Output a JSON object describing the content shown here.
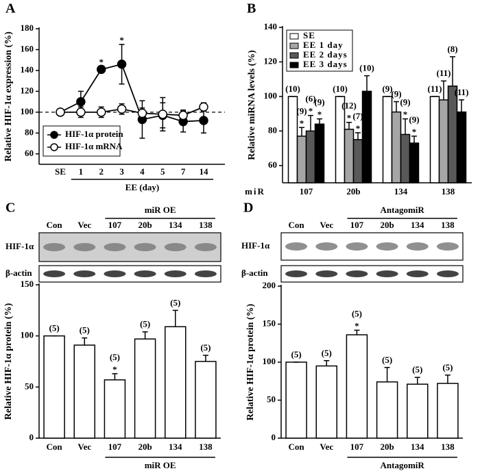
{
  "chart_data": [
    {
      "type": "line",
      "panel": "A",
      "ylabel": "Relative HIF-1α expression (%)",
      "categories": [
        "SE",
        "1",
        "2",
        "3",
        "4",
        "5",
        "7",
        "14"
      ],
      "series": [
        {
          "name": "HIF-1α protein",
          "color": "#000000",
          "values": [
            100,
            110,
            141,
            146,
            93,
            97,
            91,
            92
          ],
          "errors": [
            0,
            10,
            3,
            19,
            18,
            12,
            10,
            12
          ]
        },
        {
          "name": "HIF-1α mRNA",
          "color": "#ffffff",
          "values": [
            100,
            100,
            100,
            103,
            99,
            98,
            97,
            105
          ],
          "errors": [
            0,
            5,
            5,
            5,
            5,
            16,
            5,
            4
          ]
        }
      ],
      "annotations": [
        {
          "text": "*",
          "category": "2",
          "series": 0
        },
        {
          "text": "*",
          "category": "3",
          "series": 0
        }
      ],
      "reference_line": 100,
      "group": {
        "label": "EE (day)",
        "from": "1",
        "to": "14"
      },
      "ylim": [
        50,
        180
      ],
      "yticks": [
        60,
        80,
        100,
        120,
        140,
        160,
        180
      ],
      "legend": "lower left"
    },
    {
      "type": "bar",
      "panel": "B",
      "ylabel": "Relative miRNA levels (%)",
      "xlabel": "miR",
      "categories": [
        "107",
        "20b",
        "134",
        "138"
      ],
      "series": [
        {
          "name": "SE",
          "color": "#ffffff",
          "values": [
            100,
            100,
            100,
            100
          ],
          "errors": [
            0,
            0,
            0,
            0
          ],
          "n_labels": [
            "(10)",
            "(10)",
            "(9)",
            "(11)"
          ]
        },
        {
          "name": "EE 1 day",
          "color": "#a6a6a6",
          "values": [
            77,
            81,
            91,
            98
          ],
          "errors": [
            5,
            4,
            6,
            11
          ],
          "n_labels": [
            "(9)",
            "(12)",
            "(9)",
            "(11)"
          ]
        },
        {
          "name": "EE 2 days",
          "color": "#595959",
          "values": [
            80,
            75,
            78,
            106
          ],
          "errors": [
            9,
            4,
            9,
            17
          ],
          "n_labels": [
            "(6)",
            "(7)",
            "(9)",
            "(8)"
          ]
        },
        {
          "name": "EE 3 days",
          "color": "#000000",
          "values": [
            84,
            103,
            73,
            91
          ],
          "errors": [
            3,
            9,
            4,
            7
          ],
          "n_labels": [
            "(9)",
            "(10)",
            "(9)",
            "(11)"
          ]
        }
      ],
      "annotations": [
        {
          "text": "*",
          "category": "107",
          "series": 1
        },
        {
          "text": "*",
          "category": "107",
          "series": 2
        },
        {
          "text": "*",
          "category": "107",
          "series": 3
        },
        {
          "text": "*",
          "category": "20b",
          "series": 1
        },
        {
          "text": "*",
          "category": "20b",
          "series": 2
        },
        {
          "text": "*",
          "category": "134",
          "series": 2
        },
        {
          "text": "*",
          "category": "134",
          "series": 3
        }
      ],
      "ylim": [
        50,
        140
      ],
      "yticks": [
        60,
        80,
        100,
        120,
        140
      ],
      "legend": "upper left"
    },
    {
      "type": "bar",
      "panel": "C",
      "ylabel": "Relative HIF-1α protein (%)",
      "categories": [
        "Con",
        "Vec",
        "107",
        "20b",
        "134",
        "138"
      ],
      "values": [
        100,
        91,
        57,
        97,
        109,
        75
      ],
      "errors": [
        0,
        7,
        6,
        7,
        16,
        6
      ],
      "n_labels": [
        "(5)",
        "(5)",
        "(5)",
        "(5)",
        "(5)",
        "(5)"
      ],
      "color": "#ffffff",
      "annotations": [
        {
          "text": "*",
          "category": "107"
        }
      ],
      "group": {
        "label": "miR OE",
        "from": "107",
        "to": "138"
      },
      "blot_rows": [
        "HIF-1α",
        "β-actin"
      ],
      "ylim": [
        0,
        150
      ],
      "yticks": [
        0,
        50,
        100,
        150
      ]
    },
    {
      "type": "bar",
      "panel": "D",
      "ylabel": "Relative HIF-1α protein (%)",
      "categories": [
        "Con",
        "Vec",
        "107",
        "20b",
        "134",
        "138"
      ],
      "values": [
        100,
        95,
        136,
        74,
        71,
        72
      ],
      "errors": [
        0,
        7,
        6,
        19,
        9,
        11
      ],
      "n_labels": [
        "(5)",
        "(5)",
        "(5)",
        "(5)",
        "(5)",
        "(5)"
      ],
      "color": "#ffffff",
      "annotations": [
        {
          "text": "*",
          "category": "107"
        }
      ],
      "group": {
        "label": "AntagomiR",
        "from": "107",
        "to": "138"
      },
      "blot_rows": [
        "HIF-1α",
        "β-actin"
      ],
      "ylim": [
        0,
        200
      ],
      "yticks": [
        0,
        50,
        100,
        150,
        200
      ]
    }
  ]
}
